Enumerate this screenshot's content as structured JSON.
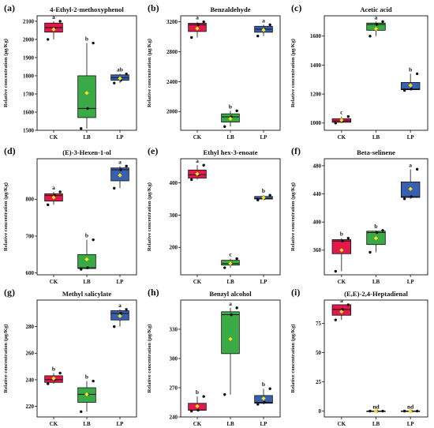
{
  "colors": {
    "CK": "#e2194b",
    "LB": "#3aaa46",
    "LP": "#3761b0",
    "mean": "#f5e620",
    "point": "#111111"
  },
  "chart_data": [
    {
      "type": "box",
      "label": "(a)",
      "title": "4-Ethyl-2-methoxyphenol",
      "ylabel": "Relative concentration (μg/Kg)",
      "ylim": [
        1500,
        2130
      ],
      "yticks": [
        1500,
        1600,
        1700,
        1800,
        1900,
        2000,
        2100
      ],
      "categories": [
        "CK",
        "LB",
        "LP"
      ],
      "boxes": [
        {
          "q1": 2040,
          "median": 2065,
          "q3": 2090,
          "whisker_low": 2000,
          "whisker_high": 2100,
          "mean": 2055,
          "points": [
            2000,
            2060,
            2100
          ],
          "letter": "a"
        },
        {
          "q1": 1570,
          "median": 1620,
          "q3": 1800,
          "whisker_low": 1510,
          "whisker_high": 1980,
          "mean": 1705,
          "points": [
            1510,
            1620,
            1980
          ],
          "letter": "b"
        },
        {
          "q1": 1775,
          "median": 1790,
          "q3": 1805,
          "whisker_low": 1760,
          "whisker_high": 1810,
          "mean": 1785,
          "points": [
            1760,
            1775,
            1810
          ],
          "letter": "ab"
        }
      ]
    },
    {
      "type": "box",
      "label": "(b)",
      "title": "Benzaldehyde",
      "ylabel": "Relative concentration (μg/Kg)",
      "ylim": [
        1750,
        3280
      ],
      "yticks": [
        2000,
        2400,
        2800,
        3200
      ],
      "categories": [
        "CK",
        "LB",
        "LP"
      ],
      "boxes": [
        {
          "q1": 3070,
          "median": 3160,
          "q3": 3180,
          "whisker_low": 2990,
          "whisker_high": 3200,
          "mean": 3110,
          "points": [
            2990,
            3160,
            3200
          ],
          "letter": "a"
        },
        {
          "q1": 1860,
          "median": 1930,
          "q3": 1970,
          "whisker_low": 1800,
          "whisker_high": 2010,
          "mean": 1905,
          "points": [
            1800,
            1930,
            2010
          ],
          "letter": "b"
        },
        {
          "q1": 3060,
          "median": 3100,
          "q3": 3140,
          "whisker_low": 3010,
          "whisker_high": 3160,
          "mean": 3090,
          "points": [
            3010,
            3100,
            3160
          ],
          "letter": "a"
        }
      ]
    },
    {
      "type": "box",
      "label": "(c)",
      "title": "Acetic acid",
      "ylabel": "Relative concentration (μg/Kg)",
      "ylim": [
        950,
        1740
      ],
      "yticks": [
        1000,
        1200,
        1400,
        1600
      ],
      "categories": [
        "CK",
        "LB",
        "LP"
      ],
      "boxes": [
        {
          "q1": 1005,
          "median": 1015,
          "q3": 1030,
          "whisker_low": 1000,
          "whisker_high": 1045,
          "mean": 1020,
          "points": [
            1000,
            1015,
            1045
          ],
          "letter": "c"
        },
        {
          "q1": 1640,
          "median": 1680,
          "q3": 1690,
          "whisker_low": 1600,
          "whisker_high": 1700,
          "mean": 1650,
          "points": [
            1600,
            1680,
            1700
          ],
          "letter": "a"
        },
        {
          "q1": 1230,
          "median": 1235,
          "q3": 1280,
          "whisker_low": 1225,
          "whisker_high": 1340,
          "mean": 1260,
          "points": [
            1225,
            1235,
            1340
          ],
          "letter": "b"
        }
      ]
    },
    {
      "type": "box",
      "label": "(d)",
      "title": "(E)-3-Hexen-1-ol",
      "ylabel": "Relative concentration (μg/Kg)",
      "ylim": [
        595,
        910
      ],
      "yticks": [
        600,
        700,
        800
      ],
      "categories": [
        "CK",
        "LB",
        "LP"
      ],
      "boxes": [
        {
          "q1": 795,
          "median": 810,
          "q3": 815,
          "whisker_low": 785,
          "whisker_high": 820,
          "mean": 805,
          "points": [
            785,
            810,
            820
          ],
          "letter": "a"
        },
        {
          "q1": 612,
          "median": 614,
          "q3": 650,
          "whisker_low": 610,
          "whisker_high": 690,
          "mean": 637,
          "points": [
            610,
            614,
            690
          ],
          "letter": "b"
        },
        {
          "q1": 850,
          "median": 880,
          "q3": 885,
          "whisker_low": 830,
          "whisker_high": 890,
          "mean": 865,
          "points": [
            830,
            880,
            890
          ],
          "letter": "a"
        }
      ]
    },
    {
      "type": "box",
      "label": "(e)",
      "title": "Ethyl hex-3-enoate",
      "ylabel": "Relative concentration (μg/Kg)",
      "ylim": [
        115,
        475
      ],
      "yticks": [
        200,
        300,
        400
      ],
      "categories": [
        "CK",
        "LB",
        "LP"
      ],
      "boxes": [
        {
          "q1": 415,
          "median": 425,
          "q3": 440,
          "whisker_low": 410,
          "whisker_high": 455,
          "mean": 428,
          "points": [
            410,
            425,
            455
          ],
          "letter": "a"
        },
        {
          "q1": 145,
          "median": 150,
          "q3": 160,
          "whisker_low": 137,
          "whisker_high": 165,
          "mean": 150,
          "points": [
            137,
            150,
            165
          ],
          "letter": "c"
        },
        {
          "q1": 350,
          "median": 352,
          "q3": 358,
          "whisker_low": 347,
          "whisker_high": 362,
          "mean": 354,
          "points": [
            347,
            352,
            362
          ],
          "letter": "b"
        }
      ]
    },
    {
      "type": "box",
      "label": "(f)",
      "title": "Beta-selinene",
      "ylabel": "Relative concentration (μg/Kg)",
      "ylim": [
        325,
        490
      ],
      "yticks": [
        360,
        400,
        440,
        480
      ],
      "categories": [
        "CK",
        "LB",
        "LP"
      ],
      "boxes": [
        {
          "q1": 355,
          "median": 373,
          "q3": 375,
          "whisker_low": 330,
          "whisker_high": 377,
          "mean": 360,
          "points": [
            330,
            373,
            377
          ],
          "letter": "b"
        },
        {
          "q1": 368,
          "median": 385,
          "q3": 387,
          "whisker_low": 357,
          "whisker_high": 388,
          "mean": 377,
          "points": [
            357,
            385,
            388
          ],
          "letter": "b"
        },
        {
          "q1": 435,
          "median": 436,
          "q3": 457,
          "whisker_low": 433,
          "whisker_high": 475,
          "mean": 447,
          "points": [
            433,
            436,
            475
          ],
          "letter": "a"
        }
      ]
    },
    {
      "type": "box",
      "label": "(g)",
      "title": "Methyl salicylate",
      "ylabel": "Relative concentration (μg/Kg)",
      "ylim": [
        212,
        300
      ],
      "yticks": [
        220,
        240,
        260,
        280
      ],
      "categories": [
        "CK",
        "LB",
        "LP"
      ],
      "boxes": [
        {
          "q1": 238,
          "median": 240,
          "q3": 243,
          "whisker_low": 237,
          "whisker_high": 245,
          "mean": 241,
          "points": [
            237,
            240,
            245
          ],
          "letter": "b"
        },
        {
          "q1": 223,
          "median": 229,
          "q3": 234,
          "whisker_low": 216,
          "whisker_high": 239,
          "mean": 229,
          "points": [
            216,
            229,
            239
          ],
          "letter": "b"
        },
        {
          "q1": 285,
          "median": 290,
          "q3": 292,
          "whisker_low": 280,
          "whisker_high": 293,
          "mean": 288,
          "points": [
            280,
            290,
            293
          ],
          "letter": "a"
        }
      ]
    },
    {
      "type": "box",
      "label": "(h)",
      "title": "Benzyl alcohol",
      "ylabel": "Relative concentration (μg/Kg)",
      "ylim": [
        240,
        360
      ],
      "yticks": [
        240,
        270,
        300,
        330
      ],
      "categories": [
        "CK",
        "LB",
        "LP"
      ],
      "boxes": [
        {
          "q1": 247,
          "median": 247,
          "q3": 254,
          "whisker_low": 246,
          "whisker_high": 261,
          "mean": 251,
          "points": [
            246,
            247,
            261
          ],
          "letter": "b"
        },
        {
          "q1": 305,
          "median": 345,
          "q3": 348,
          "whisker_low": 263,
          "whisker_high": 352,
          "mean": 320,
          "points": [
            263,
            345,
            352
          ],
          "letter": "a"
        },
        {
          "q1": 254,
          "median": 255,
          "q3": 262,
          "whisker_low": 253,
          "whisker_high": 269,
          "mean": 259,
          "points": [
            253,
            255,
            269
          ],
          "letter": "b"
        }
      ]
    },
    {
      "type": "box",
      "label": "(i)",
      "title": "(E,E)-2,4-Heptadienal",
      "ylabel": "Relative concentration (μg/Kg)",
      "ylim": [
        -5,
        95
      ],
      "yticks": [
        0,
        25,
        50,
        75
      ],
      "categories": [
        "CK",
        "LB",
        "LP"
      ],
      "boxes": [
        {
          "q1": 82,
          "median": 87,
          "q3": 91,
          "whisker_low": 78,
          "whisker_high": 91,
          "mean": 85,
          "points": [
            78,
            87,
            91
          ],
          "letter": "a"
        },
        {
          "q1": 0,
          "median": 0,
          "q3": 0,
          "whisker_low": 0,
          "whisker_high": 0,
          "mean": 0,
          "points": [
            0,
            0,
            0
          ],
          "letter": "nd"
        },
        {
          "q1": 0,
          "median": 0,
          "q3": 0,
          "whisker_low": 0,
          "whisker_high": 0,
          "mean": 0,
          "points": [
            0,
            0,
            0
          ],
          "letter": "nd"
        }
      ]
    }
  ]
}
